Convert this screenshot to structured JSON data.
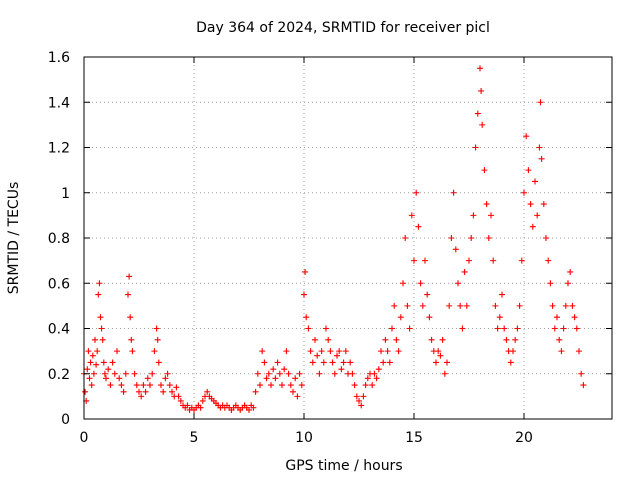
{
  "chart_data": {
    "type": "scatter",
    "title": "Day 364 of 2024, SRMTID for receiver picl",
    "xlabel": "GPS time / hours",
    "ylabel": "SRMTID / TECUs",
    "xlim": [
      0,
      24
    ],
    "ylim": [
      0,
      1.6
    ],
    "xticks": [
      0,
      5,
      10,
      15,
      20
    ],
    "xtick_labels": [
      "0",
      "5",
      "10",
      "15",
      "20"
    ],
    "yticks": [
      0,
      0.2,
      0.4,
      0.6,
      0.8,
      1.0,
      1.2,
      1.4,
      1.6
    ],
    "ytick_labels": [
      "0",
      "0.2",
      "0.4",
      "0.6",
      "0.8",
      "1",
      "1.2",
      "1.4",
      "1.6"
    ],
    "grid": true,
    "marker": "+",
    "marker_color": "#ff0000",
    "series": [
      {
        "name": "SRMTID",
        "points": [
          [
            0.0,
            0.2
          ],
          [
            0.05,
            0.12
          ],
          [
            0.1,
            0.08
          ],
          [
            0.15,
            0.22
          ],
          [
            0.2,
            0.3
          ],
          [
            0.25,
            0.18
          ],
          [
            0.3,
            0.25
          ],
          [
            0.35,
            0.15
          ],
          [
            0.4,
            0.28
          ],
          [
            0.45,
            0.2
          ],
          [
            0.5,
            0.35
          ],
          [
            0.55,
            0.24
          ],
          [
            0.6,
            0.3
          ],
          [
            0.65,
            0.55
          ],
          [
            0.7,
            0.6
          ],
          [
            0.75,
            0.45
          ],
          [
            0.8,
            0.4
          ],
          [
            0.85,
            0.35
          ],
          [
            0.9,
            0.25
          ],
          [
            0.95,
            0.2
          ],
          [
            1.0,
            0.18
          ],
          [
            1.1,
            0.22
          ],
          [
            1.2,
            0.15
          ],
          [
            1.3,
            0.25
          ],
          [
            1.4,
            0.2
          ],
          [
            1.5,
            0.3
          ],
          [
            1.6,
            0.18
          ],
          [
            1.7,
            0.15
          ],
          [
            1.8,
            0.12
          ],
          [
            1.9,
            0.2
          ],
          [
            2.0,
            0.55
          ],
          [
            2.05,
            0.63
          ],
          [
            2.1,
            0.45
          ],
          [
            2.15,
            0.35
          ],
          [
            2.2,
            0.3
          ],
          [
            2.3,
            0.2
          ],
          [
            2.4,
            0.15
          ],
          [
            2.5,
            0.12
          ],
          [
            2.6,
            0.1
          ],
          [
            2.7,
            0.15
          ],
          [
            2.8,
            0.12
          ],
          [
            2.9,
            0.18
          ],
          [
            3.0,
            0.15
          ],
          [
            3.1,
            0.2
          ],
          [
            3.2,
            0.3
          ],
          [
            3.3,
            0.4
          ],
          [
            3.35,
            0.35
          ],
          [
            3.4,
            0.25
          ],
          [
            3.5,
            0.15
          ],
          [
            3.6,
            0.12
          ],
          [
            3.7,
            0.18
          ],
          [
            3.8,
            0.2
          ],
          [
            3.9,
            0.15
          ],
          [
            4.0,
            0.12
          ],
          [
            4.1,
            0.1
          ],
          [
            4.2,
            0.14
          ],
          [
            4.3,
            0.1
          ],
          [
            4.4,
            0.08
          ],
          [
            4.5,
            0.06
          ],
          [
            4.6,
            0.05
          ],
          [
            4.7,
            0.06
          ],
          [
            4.8,
            0.04
          ],
          [
            4.9,
            0.05
          ],
          [
            5.0,
            0.04
          ],
          [
            5.1,
            0.05
          ],
          [
            5.2,
            0.06
          ],
          [
            5.3,
            0.05
          ],
          [
            5.4,
            0.08
          ],
          [
            5.5,
            0.1
          ],
          [
            5.6,
            0.12
          ],
          [
            5.7,
            0.1
          ],
          [
            5.8,
            0.09
          ],
          [
            5.9,
            0.08
          ],
          [
            6.0,
            0.07
          ],
          [
            6.1,
            0.06
          ],
          [
            6.2,
            0.05
          ],
          [
            6.3,
            0.06
          ],
          [
            6.4,
            0.05
          ],
          [
            6.5,
            0.06
          ],
          [
            6.6,
            0.05
          ],
          [
            6.7,
            0.04
          ],
          [
            6.8,
            0.05
          ],
          [
            6.9,
            0.06
          ],
          [
            7.0,
            0.05
          ],
          [
            7.1,
            0.04
          ],
          [
            7.2,
            0.05
          ],
          [
            7.3,
            0.06
          ],
          [
            7.4,
            0.05
          ],
          [
            7.5,
            0.04
          ],
          [
            7.6,
            0.06
          ],
          [
            7.7,
            0.05
          ],
          [
            7.8,
            0.12
          ],
          [
            7.9,
            0.2
          ],
          [
            8.0,
            0.15
          ],
          [
            8.1,
            0.3
          ],
          [
            8.2,
            0.25
          ],
          [
            8.3,
            0.18
          ],
          [
            8.4,
            0.2
          ],
          [
            8.5,
            0.15
          ],
          [
            8.6,
            0.22
          ],
          [
            8.7,
            0.18
          ],
          [
            8.8,
            0.25
          ],
          [
            8.9,
            0.2
          ],
          [
            9.0,
            0.15
          ],
          [
            9.1,
            0.22
          ],
          [
            9.2,
            0.3
          ],
          [
            9.3,
            0.2
          ],
          [
            9.4,
            0.15
          ],
          [
            9.5,
            0.12
          ],
          [
            9.6,
            0.18
          ],
          [
            9.7,
            0.1
          ],
          [
            9.8,
            0.2
          ],
          [
            9.9,
            0.15
          ],
          [
            10.0,
            0.55
          ],
          [
            10.05,
            0.65
          ],
          [
            10.1,
            0.45
          ],
          [
            10.2,
            0.4
          ],
          [
            10.3,
            0.3
          ],
          [
            10.4,
            0.25
          ],
          [
            10.5,
            0.35
          ],
          [
            10.6,
            0.28
          ],
          [
            10.7,
            0.2
          ],
          [
            10.8,
            0.3
          ],
          [
            10.9,
            0.25
          ],
          [
            11.0,
            0.4
          ],
          [
            11.1,
            0.35
          ],
          [
            11.2,
            0.3
          ],
          [
            11.3,
            0.25
          ],
          [
            11.4,
            0.2
          ],
          [
            11.5,
            0.28
          ],
          [
            11.6,
            0.3
          ],
          [
            11.7,
            0.22
          ],
          [
            11.8,
            0.25
          ],
          [
            11.9,
            0.3
          ],
          [
            12.0,
            0.2
          ],
          [
            12.1,
            0.25
          ],
          [
            12.2,
            0.2
          ],
          [
            12.3,
            0.15
          ],
          [
            12.4,
            0.1
          ],
          [
            12.5,
            0.08
          ],
          [
            12.6,
            0.06
          ],
          [
            12.7,
            0.1
          ],
          [
            12.8,
            0.15
          ],
          [
            12.9,
            0.18
          ],
          [
            13.0,
            0.2
          ],
          [
            13.1,
            0.15
          ],
          [
            13.2,
            0.2
          ],
          [
            13.3,
            0.18
          ],
          [
            13.4,
            0.22
          ],
          [
            13.5,
            0.3
          ],
          [
            13.6,
            0.25
          ],
          [
            13.7,
            0.35
          ],
          [
            13.8,
            0.3
          ],
          [
            13.9,
            0.25
          ],
          [
            14.0,
            0.4
          ],
          [
            14.1,
            0.5
          ],
          [
            14.2,
            0.35
          ],
          [
            14.3,
            0.3
          ],
          [
            14.4,
            0.45
          ],
          [
            14.5,
            0.6
          ],
          [
            14.6,
            0.8
          ],
          [
            14.7,
            0.5
          ],
          [
            14.8,
            0.4
          ],
          [
            14.9,
            0.9
          ],
          [
            15.0,
            0.7
          ],
          [
            15.1,
            1.0
          ],
          [
            15.2,
            0.85
          ],
          [
            15.3,
            0.6
          ],
          [
            15.4,
            0.5
          ],
          [
            15.5,
            0.7
          ],
          [
            15.6,
            0.55
          ],
          [
            15.7,
            0.45
          ],
          [
            15.8,
            0.35
          ],
          [
            15.9,
            0.3
          ],
          [
            16.0,
            0.25
          ],
          [
            16.1,
            0.3
          ],
          [
            16.2,
            0.28
          ],
          [
            16.3,
            0.35
          ],
          [
            16.4,
            0.2
          ],
          [
            16.5,
            0.25
          ],
          [
            16.6,
            0.5
          ],
          [
            16.7,
            0.8
          ],
          [
            16.8,
            1.0
          ],
          [
            16.9,
            0.75
          ],
          [
            17.0,
            0.6
          ],
          [
            17.1,
            0.5
          ],
          [
            17.2,
            0.4
          ],
          [
            17.3,
            0.65
          ],
          [
            17.4,
            0.5
          ],
          [
            17.5,
            0.7
          ],
          [
            17.6,
            0.8
          ],
          [
            17.7,
            0.9
          ],
          [
            17.8,
            1.2
          ],
          [
            17.9,
            1.35
          ],
          [
            18.0,
            1.55
          ],
          [
            18.05,
            1.45
          ],
          [
            18.1,
            1.3
          ],
          [
            18.2,
            1.1
          ],
          [
            18.3,
            0.95
          ],
          [
            18.4,
            0.8
          ],
          [
            18.5,
            0.9
          ],
          [
            18.6,
            0.7
          ],
          [
            18.7,
            0.5
          ],
          [
            18.8,
            0.4
          ],
          [
            18.9,
            0.45
          ],
          [
            19.0,
            0.55
          ],
          [
            19.1,
            0.4
          ],
          [
            19.2,
            0.35
          ],
          [
            19.3,
            0.3
          ],
          [
            19.4,
            0.25
          ],
          [
            19.5,
            0.3
          ],
          [
            19.6,
            0.35
          ],
          [
            19.7,
            0.4
          ],
          [
            19.8,
            0.5
          ],
          [
            19.9,
            0.7
          ],
          [
            20.0,
            1.0
          ],
          [
            20.1,
            1.25
          ],
          [
            20.2,
            1.1
          ],
          [
            20.3,
            0.95
          ],
          [
            20.4,
            0.85
          ],
          [
            20.5,
            1.05
          ],
          [
            20.6,
            0.9
          ],
          [
            20.7,
            1.2
          ],
          [
            20.75,
            1.4
          ],
          [
            20.8,
            1.15
          ],
          [
            20.9,
            0.95
          ],
          [
            21.0,
            0.8
          ],
          [
            21.1,
            0.7
          ],
          [
            21.2,
            0.6
          ],
          [
            21.3,
            0.5
          ],
          [
            21.4,
            0.4
          ],
          [
            21.5,
            0.45
          ],
          [
            21.6,
            0.35
          ],
          [
            21.7,
            0.3
          ],
          [
            21.8,
            0.4
          ],
          [
            21.9,
            0.5
          ],
          [
            22.0,
            0.6
          ],
          [
            22.1,
            0.65
          ],
          [
            22.2,
            0.5
          ],
          [
            22.3,
            0.45
          ],
          [
            22.4,
            0.4
          ],
          [
            22.5,
            0.3
          ],
          [
            22.6,
            0.2
          ],
          [
            22.7,
            0.15
          ]
        ]
      }
    ]
  }
}
